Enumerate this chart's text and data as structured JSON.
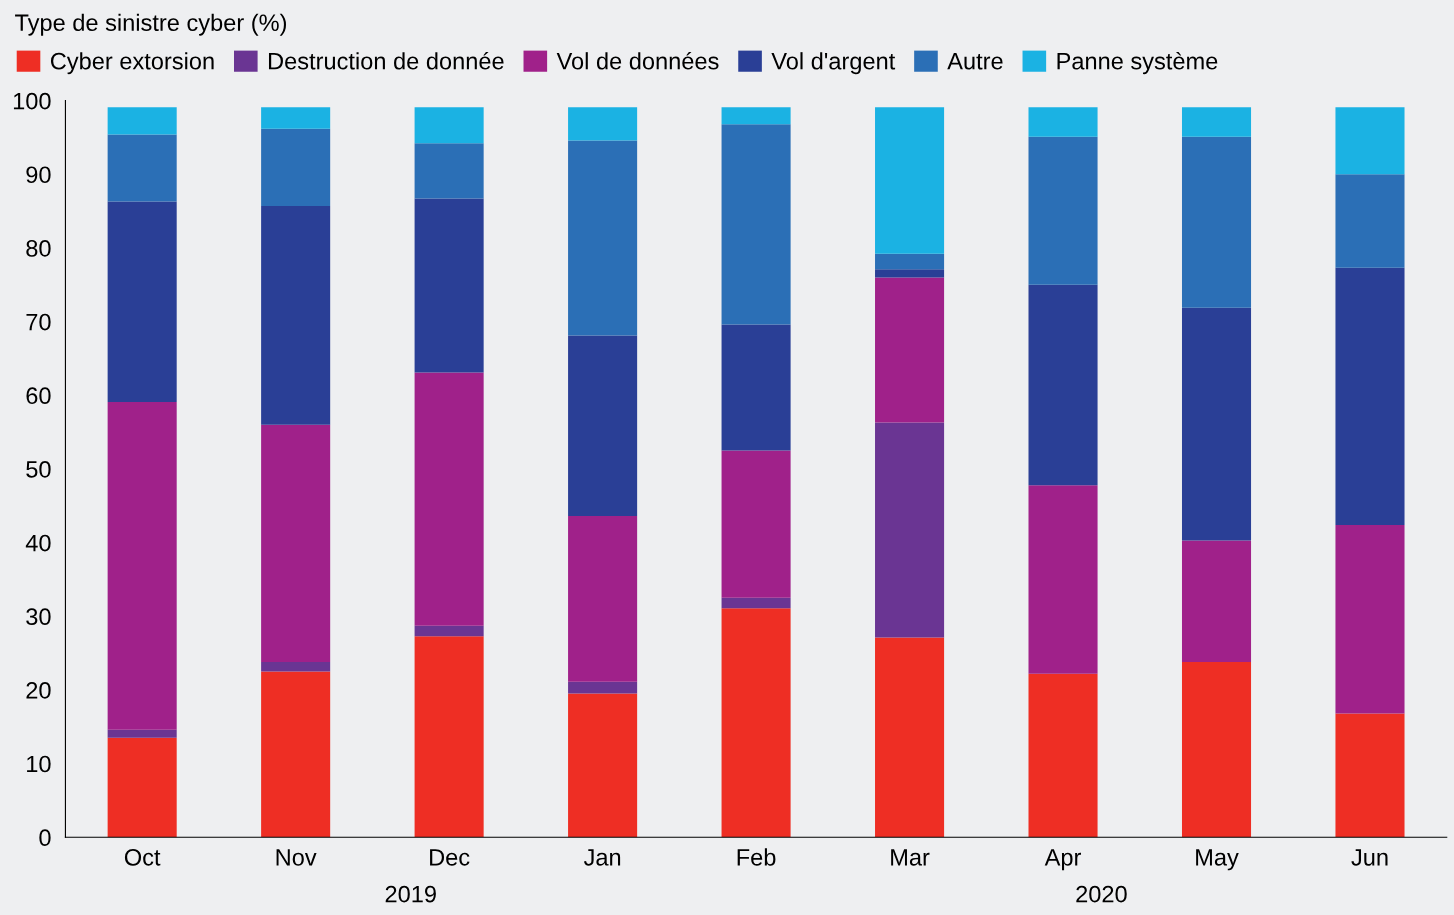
{
  "chart_data": {
    "type": "bar",
    "stacked": true,
    "title": "Type de sinistre cyber (%)",
    "categories": [
      "Oct",
      "Nov",
      "Dec",
      "Jan",
      "Feb",
      "Mar",
      "Apr",
      "May",
      "Jun"
    ],
    "series": [
      {
        "name": "Cyber extorsion",
        "color": "#ee2e24",
        "values": [
          13.5,
          22.5,
          27.3,
          19.5,
          31.1,
          27.1,
          22.2,
          23.8,
          16.8
        ]
      },
      {
        "name": "Destruction de donnée",
        "color": "#6a3593",
        "values": [
          1.1,
          1.3,
          1.4,
          1.6,
          1.4,
          29.2,
          0,
          0,
          0
        ]
      },
      {
        "name": "Vol de données",
        "color": "#a0218a",
        "values": [
          44.5,
          32.2,
          34.4,
          22.5,
          20.0,
          19.7,
          25.6,
          16.5,
          25.6
        ]
      },
      {
        "name": "Vol d'argent",
        "color": "#2a3f96",
        "values": [
          27.2,
          29.7,
          23.6,
          24.5,
          17.1,
          1.1,
          27.2,
          31.6,
          34.9
        ]
      },
      {
        "name": "Autre",
        "color": "#2b6fb6",
        "values": [
          9.1,
          10.5,
          7.5,
          26.5,
          27.2,
          2.1,
          20.1,
          23.2,
          12.7
        ]
      },
      {
        "name": "Panne système",
        "color": "#1bb2e3",
        "values": [
          3.7,
          2.9,
          4.9,
          4.5,
          2.3,
          19.9,
          4.0,
          4.0,
          9.1
        ]
      }
    ],
    "ylim": [
      0,
      100
    ],
    "yticks": [
      0,
      10,
      20,
      30,
      40,
      50,
      60,
      70,
      80,
      90,
      100
    ],
    "annotations": [
      "2019",
      "2020"
    ],
    "grid": false,
    "legend": "top left"
  }
}
